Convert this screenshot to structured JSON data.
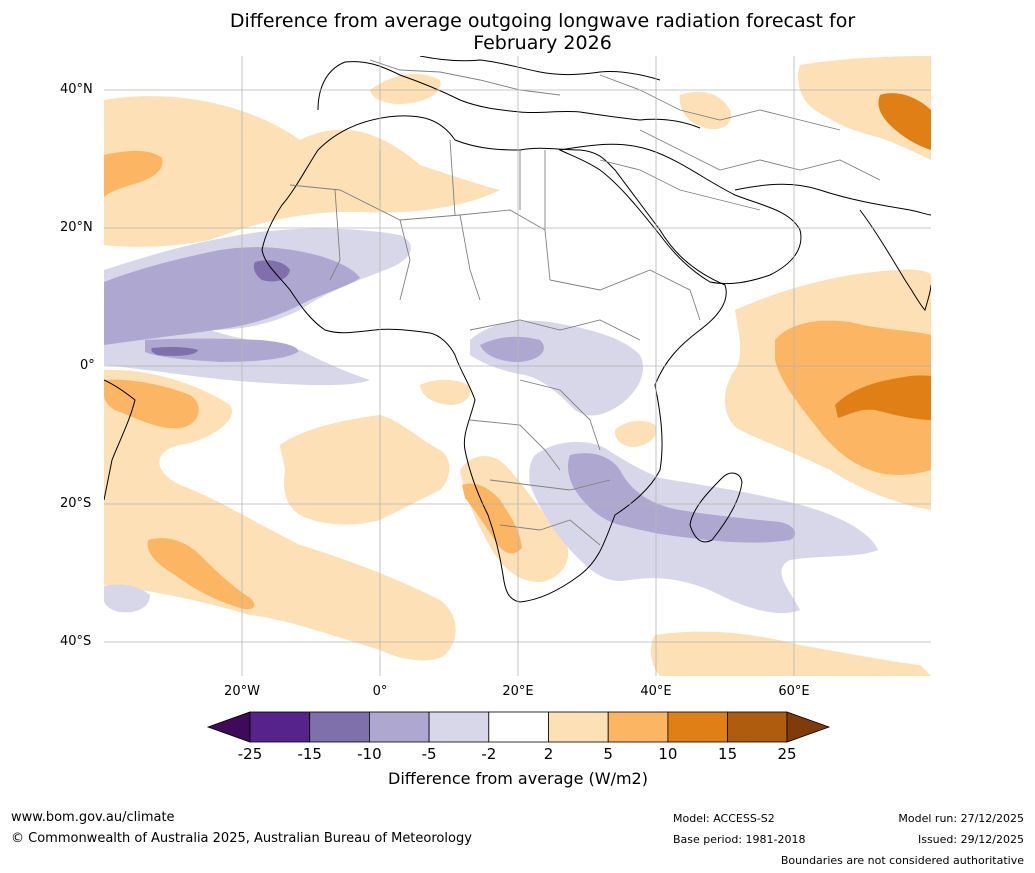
{
  "title": {
    "line1": "Difference from average outgoing longwave radiation forecast for",
    "line2": "February 2026"
  },
  "axes": {
    "lat_labels": [
      "40°N",
      "20°N",
      "0°",
      "20°S",
      "40°S"
    ],
    "lon_labels": [
      "20°W",
      "0°",
      "20°E",
      "40°E",
      "60°E"
    ]
  },
  "legend": {
    "title": "Difference from average (W/m2)",
    "tick_labels": [
      "-25",
      "-15",
      "-10",
      "-5",
      "-2",
      "2",
      "5",
      "10",
      "15",
      "25"
    ],
    "colors": [
      "#3f0a5a",
      "#56238a",
      "#7f6faa",
      "#aea8d1",
      "#d8d7ea",
      "#ffffff",
      "#fde0b5",
      "#fbb563",
      "#e07f16",
      "#b05c0e",
      "#7f3c0a"
    ]
  },
  "footer": {
    "website": "www.bom.gov.au/climate",
    "copyright": "© Commonwealth of Australia 2025, Australian Bureau of Meteorology",
    "model": "Model: ACCESS-S2",
    "base_period": "Base period: 1981-2018",
    "model_run": "Model run: 27/12/2025",
    "issued": "Issued: 29/12/2025",
    "disclaimer": "Boundaries are not considered authoritative"
  }
}
